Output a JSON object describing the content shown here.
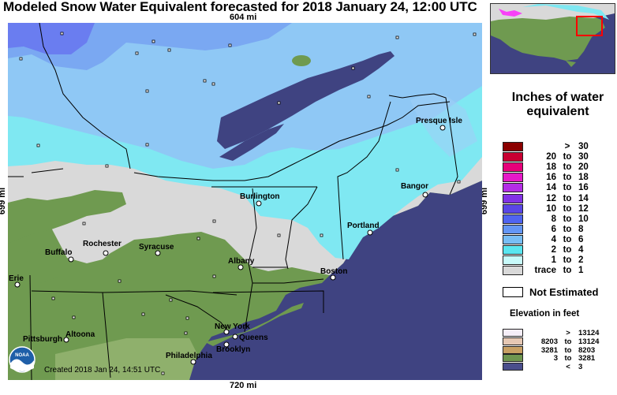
{
  "title": "Modeled Snow Water Equivalent forecasted for 2018 January 24, 12:00 UTC",
  "scale": {
    "top": "604 mi",
    "bottom": "720 mi",
    "left": "699 mi",
    "right": "699 mi"
  },
  "created": "Created 2018 Jan 24, 14:51 UTC",
  "logo_text": "NOAA",
  "cities": [
    {
      "name": "Presque Isle"
    },
    {
      "name": "Bangor"
    },
    {
      "name": "Burlington"
    },
    {
      "name": "Portland"
    },
    {
      "name": "Rochester"
    },
    {
      "name": "Buffalo"
    },
    {
      "name": "Syracuse"
    },
    {
      "name": "Albany"
    },
    {
      "name": "Boston"
    },
    {
      "name": "Erie"
    },
    {
      "name": "New York"
    },
    {
      "name": "Queens"
    },
    {
      "name": "Altoona"
    },
    {
      "name": "Pittsburgh"
    },
    {
      "name": "Philadelphia"
    },
    {
      "name": "Brooklyn"
    }
  ],
  "legend": {
    "title": "Inches of water equivalent",
    "rows": [
      {
        "a": "",
        "to": ">",
        "b": "30",
        "color": "#8b0000"
      },
      {
        "a": "20",
        "to": "to",
        "b": "30",
        "color": "#c80032"
      },
      {
        "a": "18",
        "to": "to",
        "b": "20",
        "color": "#e6007a"
      },
      {
        "a": "16",
        "to": "to",
        "b": "18",
        "color": "#e619c8"
      },
      {
        "a": "14",
        "to": "to",
        "b": "16",
        "color": "#b42de6"
      },
      {
        "a": "12",
        "to": "to",
        "b": "14",
        "color": "#8232e6"
      },
      {
        "a": "10",
        "to": "to",
        "b": "12",
        "color": "#5a46e6"
      },
      {
        "a": "8",
        "to": "to",
        "b": "10",
        "color": "#5064f0"
      },
      {
        "a": "6",
        "to": "to",
        "b": "8",
        "color": "#6496f5"
      },
      {
        "a": "4",
        "to": "to",
        "b": "6",
        "color": "#78bef5"
      },
      {
        "a": "2",
        "to": "to",
        "b": "4",
        "color": "#5ae6f0"
      },
      {
        "a": "1",
        "to": "to",
        "b": "2",
        "color": "#c8fafa"
      },
      {
        "a": "trace",
        "to": "to",
        "b": "1",
        "color": "#d9d9d9"
      }
    ]
  },
  "not_estimated": "Not Estimated",
  "elevation": {
    "title": "Elevation in feet",
    "rows": [
      {
        "a": "",
        "to": ">",
        "b": "13124",
        "color": "#f5eef8"
      },
      {
        "a": "8203",
        "to": "to",
        "b": "13124",
        "color": "#e6c8b4"
      },
      {
        "a": "3281",
        "to": "to",
        "b": "8203",
        "color": "#c8a064"
      },
      {
        "a": "3",
        "to": "to",
        "b": "3281",
        "color": "#6e9650"
      },
      {
        "a": "",
        "to": "<",
        "b": "3",
        "color": "#4a4e8c"
      }
    ]
  }
}
